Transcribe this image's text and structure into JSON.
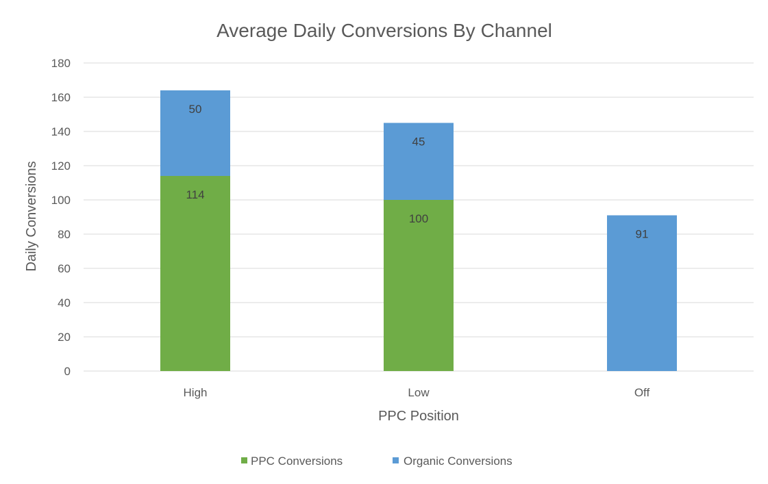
{
  "chart_data": {
    "type": "bar",
    "stacked": true,
    "title": "Average Daily Conversions By Channel",
    "xlabel": "PPC Position",
    "ylabel": "Daily Conversions",
    "categories": [
      "High",
      "Low",
      "Off"
    ],
    "series": [
      {
        "name": "PPC Conversions",
        "color": "#70ad47",
        "values": [
          114,
          100,
          0
        ],
        "labels": [
          "114",
          "100",
          ""
        ]
      },
      {
        "name": "Organic Conversions",
        "color": "#5b9bd5",
        "values": [
          50,
          45,
          91
        ],
        "labels": [
          "50",
          "45",
          "91"
        ]
      }
    ],
    "ylim": [
      0,
      180
    ],
    "yticks": [
      0,
      20,
      40,
      60,
      80,
      100,
      120,
      140,
      160,
      180
    ],
    "grid": true,
    "legend_position": "bottom"
  }
}
